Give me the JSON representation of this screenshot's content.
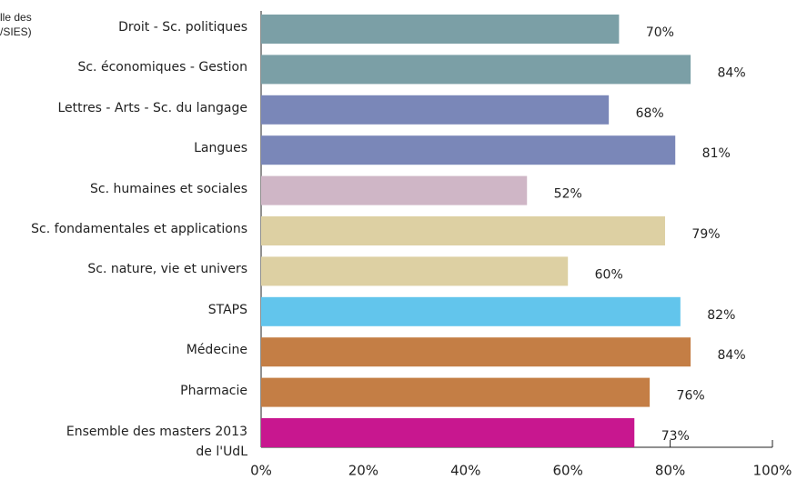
{
  "chart_data": {
    "type": "bar",
    "orientation": "horizontal",
    "annotation": [
      "lle des",
      "/SIES)"
    ],
    "categories": [
      "Droit - Sc. politiques",
      "Sc. économiques - Gestion",
      "Lettres - Arts - Sc. du langage",
      "Langues",
      "Sc. humaines et sociales",
      "Sc. fondamentales et applications",
      "Sc. nature, vie et univers",
      "STAPS",
      "Médecine",
      "Pharmacie",
      "Ensemble des masters 2013\nde l'UdL"
    ],
    "values": [
      70,
      84,
      68,
      81,
      52,
      79,
      60,
      82,
      84,
      76,
      73
    ],
    "value_labels": [
      "70%",
      "84%",
      "68%",
      "81%",
      "52%",
      "79%",
      "60%",
      "82%",
      "84%",
      "76%",
      "73%"
    ],
    "colors": [
      "#7b9fa6",
      "#7b9fa6",
      "#7a87b8",
      "#7a87b8",
      "#cfb6c6",
      "#ddd0a3",
      "#ddd0a3",
      "#62c5ec",
      "#c47e45",
      "#c47e45",
      "#c8178f"
    ],
    "xlim": [
      0,
      100
    ],
    "xticks": [
      {
        "value": 0,
        "label": "0%"
      },
      {
        "value": 20,
        "label": "20%"
      },
      {
        "value": 40,
        "label": "40%"
      },
      {
        "value": 60,
        "label": "60%"
      },
      {
        "value": 80,
        "label": "80%"
      },
      {
        "value": 100,
        "label": "100%"
      }
    ]
  }
}
